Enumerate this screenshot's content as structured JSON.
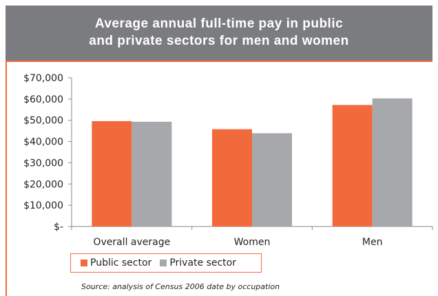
{
  "header": {
    "title_line1": "Average annual full-time pay in public",
    "title_line2": "and private sectors for men and women"
  },
  "source": "Source: analysis of Census 2006 date by occupation",
  "chart_data": {
    "type": "bar",
    "title": "Average annual full-time pay in public and private sectors for men and women",
    "categories": [
      "Overall average",
      "Women",
      "Men"
    ],
    "series": [
      {
        "name": "Public sector",
        "color": "#f26a3b",
        "values": [
          49600,
          45800,
          57200
        ]
      },
      {
        "name": "Private sector",
        "color": "#a7a8ab",
        "values": [
          49300,
          43900,
          60300
        ]
      }
    ],
    "y_ticks": [
      "$-",
      "$10,000",
      "$20,000",
      "$30,000",
      "$40,000",
      "$50,000",
      "$60,000",
      "$70,000"
    ],
    "ylim": [
      0,
      70000
    ],
    "grid": false,
    "legend_position": "bottom-left"
  },
  "legend": {
    "public_label": "Public sector",
    "private_label": "Private sector"
  }
}
